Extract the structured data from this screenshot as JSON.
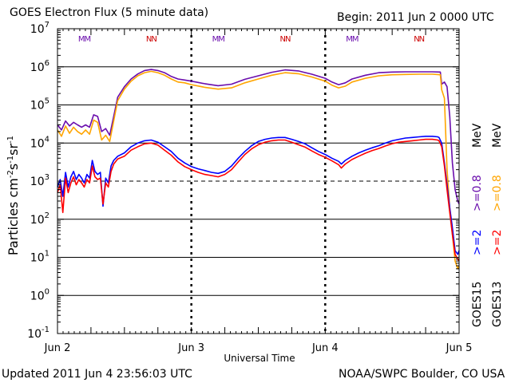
{
  "header": {
    "title": "GOES Electron Flux (5 minute data)",
    "begin": "Begin: 2011 Jun 2 0000 UTC"
  },
  "footer": {
    "updated": "Updated 2011 Jun  4 23:56:03 UTC",
    "source": "NOAA/SWPC Boulder, CO USA"
  },
  "colors": {
    "goes15_2mev": "#0000ff",
    "goes15_08mev": "#6a0dad",
    "goes13_2mev": "#ff0000",
    "goes13_08mev": "#ffa500",
    "marker_M": "#6a0dad",
    "marker_N": "#cc0000"
  },
  "chart_data": {
    "type": "line",
    "title": "GOES Electron Flux (5 minute data)",
    "xlabel": "Universal Time",
    "ylabel": "Particles cm",
    "ylabel_sup1": "-2",
    "ylabel_mid1": "s",
    "ylabel_sup2": "-1",
    "ylabel_mid2": "sr",
    "ylabel_sup3": "-1",
    "xlim": [
      0,
      3
    ],
    "x_units": "days since 2011 Jun 2 0000 UTC",
    "ylim": [
      0.1,
      10000000
    ],
    "yscale": "log",
    "x_ticks": [
      {
        "x": 0,
        "label": "Jun 2"
      },
      {
        "x": 1,
        "label": "Jun 3"
      },
      {
        "x": 2,
        "label": "Jun 4"
      },
      {
        "x": 3,
        "label": "Jun 5"
      }
    ],
    "y_ticks": [
      {
        "value": 10000000,
        "base": "10",
        "exp": "7"
      },
      {
        "value": 1000000,
        "base": "10",
        "exp": "6"
      },
      {
        "value": 100000,
        "base": "10",
        "exp": "5"
      },
      {
        "value": 10000,
        "base": "10",
        "exp": "4"
      },
      {
        "value": 1000,
        "base": "10",
        "exp": "3"
      },
      {
        "value": 100,
        "base": "10",
        "exp": "2"
      },
      {
        "value": 10,
        "base": "10",
        "exp": "1"
      },
      {
        "value": 1,
        "base": "10",
        "exp": "0"
      },
      {
        "value": 0.1,
        "base": "10",
        "exp": "-1"
      }
    ],
    "threshold_line": 1000,
    "markers": [
      {
        "x": 0.2,
        "label": "M"
      },
      {
        "x": 0.7,
        "label": "N"
      },
      {
        "x": 1.2,
        "label": "M"
      },
      {
        "x": 1.7,
        "label": "N"
      },
      {
        "x": 2.2,
        "label": "M"
      },
      {
        "x": 2.7,
        "label": "N"
      }
    ],
    "legend": [
      {
        "text": "GOES15",
        "color": "#000000"
      },
      {
        "text": ">=2",
        "color": "#0000ff"
      },
      {
        "text": ">=0.8",
        "color": "#6a0dad"
      },
      {
        "text": "MeV",
        "color": "#000000"
      },
      {
        "text": "GOES13",
        "color": "#000000"
      },
      {
        "text": ">=2",
        "color": "#ff0000"
      },
      {
        "text": ">=0.8",
        "color": "#ffa500"
      },
      {
        "text": "MeV",
        "color": "#000000"
      }
    ],
    "series": [
      {
        "name": "GOES15 >=0.8 MeV",
        "color": "#6a0dad",
        "points": [
          [
            0,
            30000
          ],
          [
            0.03,
            22000
          ],
          [
            0.06,
            38000
          ],
          [
            0.09,
            28000
          ],
          [
            0.12,
            35000
          ],
          [
            0.15,
            30000
          ],
          [
            0.18,
            26000
          ],
          [
            0.21,
            30000
          ],
          [
            0.24,
            26000
          ],
          [
            0.27,
            55000
          ],
          [
            0.3,
            50000
          ],
          [
            0.33,
            20000
          ],
          [
            0.36,
            24000
          ],
          [
            0.39,
            16000
          ],
          [
            0.42,
            50000
          ],
          [
            0.45,
            160000
          ],
          [
            0.5,
            300000
          ],
          [
            0.55,
            480000
          ],
          [
            0.6,
            650000
          ],
          [
            0.65,
            800000
          ],
          [
            0.7,
            850000
          ],
          [
            0.75,
            800000
          ],
          [
            0.8,
            700000
          ],
          [
            0.85,
            560000
          ],
          [
            0.9,
            480000
          ],
          [
            0.95,
            450000
          ],
          [
            1.0,
            420000
          ],
          [
            1.1,
            360000
          ],
          [
            1.2,
            320000
          ],
          [
            1.3,
            350000
          ],
          [
            1.4,
            470000
          ],
          [
            1.5,
            580000
          ],
          [
            1.6,
            720000
          ],
          [
            1.7,
            830000
          ],
          [
            1.8,
            780000
          ],
          [
            1.9,
            640000
          ],
          [
            2.0,
            500000
          ],
          [
            2.05,
            400000
          ],
          [
            2.1,
            340000
          ],
          [
            2.15,
            380000
          ],
          [
            2.2,
            480000
          ],
          [
            2.3,
            600000
          ],
          [
            2.4,
            700000
          ],
          [
            2.5,
            730000
          ],
          [
            2.6,
            740000
          ],
          [
            2.7,
            740000
          ],
          [
            2.8,
            740000
          ],
          [
            2.86,
            730000
          ],
          [
            2.87,
            350000
          ],
          [
            2.89,
            400000
          ],
          [
            2.91,
            300000
          ],
          [
            2.93,
            50000
          ],
          [
            2.95,
            3000
          ],
          [
            2.97,
            600
          ],
          [
            2.99,
            300
          ],
          [
            3.0,
            250
          ]
        ]
      },
      {
        "name": "GOES13 >=0.8 MeV",
        "color": "#ffa500",
        "points": [
          [
            0,
            22000
          ],
          [
            0.03,
            15000
          ],
          [
            0.06,
            28000
          ],
          [
            0.09,
            18000
          ],
          [
            0.12,
            26000
          ],
          [
            0.15,
            20000
          ],
          [
            0.18,
            17000
          ],
          [
            0.21,
            22000
          ],
          [
            0.24,
            17000
          ],
          [
            0.27,
            40000
          ],
          [
            0.3,
            35000
          ],
          [
            0.33,
            12000
          ],
          [
            0.36,
            16000
          ],
          [
            0.39,
            11000
          ],
          [
            0.42,
            38000
          ],
          [
            0.45,
            130000
          ],
          [
            0.5,
            260000
          ],
          [
            0.55,
            420000
          ],
          [
            0.6,
            580000
          ],
          [
            0.65,
            700000
          ],
          [
            0.7,
            760000
          ],
          [
            0.75,
            700000
          ],
          [
            0.8,
            600000
          ],
          [
            0.85,
            480000
          ],
          [
            0.9,
            400000
          ],
          [
            0.95,
            380000
          ],
          [
            1.0,
            340000
          ],
          [
            1.1,
            290000
          ],
          [
            1.2,
            260000
          ],
          [
            1.3,
            280000
          ],
          [
            1.4,
            380000
          ],
          [
            1.5,
            480000
          ],
          [
            1.6,
            600000
          ],
          [
            1.7,
            700000
          ],
          [
            1.8,
            660000
          ],
          [
            1.9,
            540000
          ],
          [
            2.0,
            420000
          ],
          [
            2.05,
            330000
          ],
          [
            2.1,
            280000
          ],
          [
            2.15,
            310000
          ],
          [
            2.2,
            400000
          ],
          [
            2.3,
            500000
          ],
          [
            2.4,
            580000
          ],
          [
            2.5,
            620000
          ],
          [
            2.6,
            630000
          ],
          [
            2.7,
            640000
          ],
          [
            2.8,
            640000
          ],
          [
            2.86,
            620000
          ],
          [
            2.87,
            250000
          ],
          [
            2.89,
            150000
          ],
          [
            2.91,
            2000
          ],
          [
            2.93,
            200
          ],
          [
            2.95,
            40
          ],
          [
            2.97,
            8
          ],
          [
            2.99,
            5
          ],
          [
            3.0,
            6
          ]
        ]
      },
      {
        "name": "GOES15 >=2 MeV",
        "color": "#0000ff",
        "points": [
          [
            0,
            700
          ],
          [
            0.02,
            1100
          ],
          [
            0.04,
            400
          ],
          [
            0.06,
            1700
          ],
          [
            0.08,
            700
          ],
          [
            0.1,
            1300
          ],
          [
            0.12,
            1800
          ],
          [
            0.14,
            1100
          ],
          [
            0.16,
            1500
          ],
          [
            0.18,
            1200
          ],
          [
            0.2,
            900
          ],
          [
            0.22,
            1500
          ],
          [
            0.24,
            1200
          ],
          [
            0.26,
            3500
          ],
          [
            0.28,
            1800
          ],
          [
            0.3,
            1500
          ],
          [
            0.32,
            1700
          ],
          [
            0.34,
            220
          ],
          [
            0.36,
            1200
          ],
          [
            0.38,
            900
          ],
          [
            0.4,
            2500
          ],
          [
            0.42,
            3500
          ],
          [
            0.45,
            4500
          ],
          [
            0.5,
            5500
          ],
          [
            0.55,
            8000
          ],
          [
            0.6,
            10000
          ],
          [
            0.65,
            11500
          ],
          [
            0.7,
            12000
          ],
          [
            0.75,
            10500
          ],
          [
            0.8,
            8000
          ],
          [
            0.85,
            6000
          ],
          [
            0.9,
            4000
          ],
          [
            0.95,
            3000
          ],
          [
            1.0,
            2400
          ],
          [
            1.05,
            2100
          ],
          [
            1.1,
            1900
          ],
          [
            1.15,
            1700
          ],
          [
            1.2,
            1600
          ],
          [
            1.25,
            1800
          ],
          [
            1.3,
            2500
          ],
          [
            1.35,
            4000
          ],
          [
            1.4,
            6000
          ],
          [
            1.45,
            8500
          ],
          [
            1.5,
            11000
          ],
          [
            1.55,
            12500
          ],
          [
            1.6,
            13500
          ],
          [
            1.65,
            14000
          ],
          [
            1.7,
            14000
          ],
          [
            1.75,
            12500
          ],
          [
            1.8,
            11000
          ],
          [
            1.85,
            9500
          ],
          [
            1.9,
            7500
          ],
          [
            1.95,
            6000
          ],
          [
            2.0,
            5000
          ],
          [
            2.05,
            4000
          ],
          [
            2.1,
            3300
          ],
          [
            2.12,
            2800
          ],
          [
            2.15,
            3500
          ],
          [
            2.2,
            4500
          ],
          [
            2.25,
            5500
          ],
          [
            2.3,
            6500
          ],
          [
            2.35,
            7500
          ],
          [
            2.4,
            8500
          ],
          [
            2.45,
            10000
          ],
          [
            2.5,
            11500
          ],
          [
            2.55,
            12500
          ],
          [
            2.6,
            13500
          ],
          [
            2.65,
            14000
          ],
          [
            2.7,
            14500
          ],
          [
            2.75,
            15000
          ],
          [
            2.8,
            15000
          ],
          [
            2.84,
            14500
          ],
          [
            2.85,
            14000
          ],
          [
            2.87,
            10000
          ],
          [
            2.89,
            3000
          ],
          [
            2.91,
            800
          ],
          [
            2.93,
            200
          ],
          [
            2.95,
            60
          ],
          [
            2.97,
            15
          ],
          [
            2.99,
            12
          ],
          [
            3.0,
            15
          ]
        ]
      },
      {
        "name": "GOES13 >=2 MeV",
        "color": "#ff0000",
        "points": [
          [
            0,
            500
          ],
          [
            0.02,
            800
          ],
          [
            0.04,
            150
          ],
          [
            0.06,
            1200
          ],
          [
            0.08,
            500
          ],
          [
            0.1,
            900
          ],
          [
            0.12,
            1300
          ],
          [
            0.14,
            800
          ],
          [
            0.16,
            1100
          ],
          [
            0.18,
            900
          ],
          [
            0.2,
            700
          ],
          [
            0.22,
            1100
          ],
          [
            0.24,
            900
          ],
          [
            0.26,
            2500
          ],
          [
            0.28,
            1300
          ],
          [
            0.3,
            1100
          ],
          [
            0.32,
            1200
          ],
          [
            0.34,
            250
          ],
          [
            0.36,
            900
          ],
          [
            0.38,
            700
          ],
          [
            0.4,
            1800
          ],
          [
            0.42,
            2800
          ],
          [
            0.45,
            3800
          ],
          [
            0.5,
            4500
          ],
          [
            0.55,
            6500
          ],
          [
            0.6,
            8000
          ],
          [
            0.65,
            9500
          ],
          [
            0.7,
            10000
          ],
          [
            0.75,
            8800
          ],
          [
            0.8,
            6500
          ],
          [
            0.85,
            4800
          ],
          [
            0.9,
            3200
          ],
          [
            0.95,
            2400
          ],
          [
            1.0,
            2000
          ],
          [
            1.05,
            1700
          ],
          [
            1.1,
            1500
          ],
          [
            1.15,
            1400
          ],
          [
            1.2,
            1300
          ],
          [
            1.25,
            1500
          ],
          [
            1.3,
            2000
          ],
          [
            1.35,
            3200
          ],
          [
            1.4,
            5000
          ],
          [
            1.45,
            7000
          ],
          [
            1.5,
            9000
          ],
          [
            1.55,
            10500
          ],
          [
            1.6,
            11500
          ],
          [
            1.65,
            12000
          ],
          [
            1.7,
            12000
          ],
          [
            1.75,
            10500
          ],
          [
            1.8,
            9000
          ],
          [
            1.85,
            7800
          ],
          [
            1.9,
            6200
          ],
          [
            1.95,
            5000
          ],
          [
            2.0,
            4200
          ],
          [
            2.05,
            3400
          ],
          [
            2.1,
            2700
          ],
          [
            2.12,
            2200
          ],
          [
            2.15,
            2800
          ],
          [
            2.2,
            3700
          ],
          [
            2.25,
            4500
          ],
          [
            2.3,
            5400
          ],
          [
            2.35,
            6300
          ],
          [
            2.4,
            7200
          ],
          [
            2.45,
            8400
          ],
          [
            2.5,
            9600
          ],
          [
            2.55,
            10500
          ],
          [
            2.6,
            11000
          ],
          [
            2.65,
            11500
          ],
          [
            2.7,
            12000
          ],
          [
            2.75,
            12500
          ],
          [
            2.8,
            12500
          ],
          [
            2.84,
            12000
          ],
          [
            2.85,
            11500
          ],
          [
            2.87,
            8000
          ],
          [
            2.89,
            2500
          ],
          [
            2.91,
            600
          ],
          [
            2.93,
            150
          ],
          [
            2.95,
            40
          ],
          [
            2.97,
            12
          ],
          [
            2.99,
            9
          ],
          [
            3.0,
            8
          ]
        ]
      }
    ]
  }
}
